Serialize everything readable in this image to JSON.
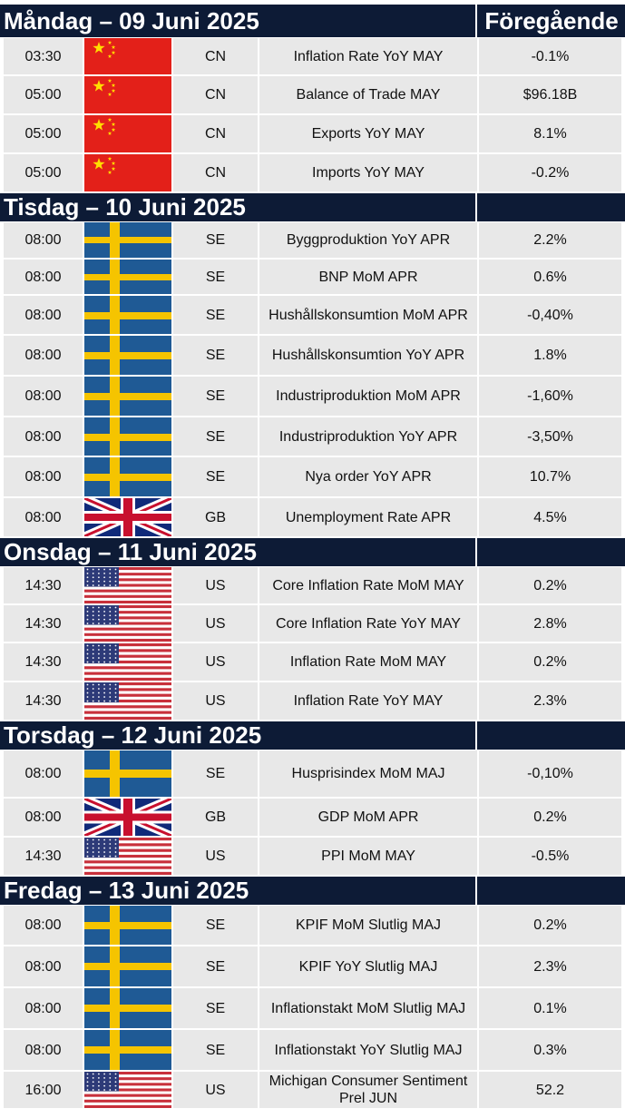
{
  "column_header_prev": "Föregående",
  "flag_colors": {
    "CN": {
      "red": "#e32019",
      "star": "#ffde00"
    },
    "SE": {
      "blue": "#1f5a95",
      "yellow": "#f5c400"
    },
    "GB": {
      "blue": "#102a7a",
      "white": "#ffffff",
      "red": "#c8102e"
    },
    "US": {
      "stripe_red": "#c8303b",
      "white": "#ffffff",
      "canton": "#2d3a78"
    }
  },
  "days": [
    {
      "title": "Måndag – 09 Juni 2025",
      "rows": [
        {
          "time": "03:30",
          "flag": "cn-flag-icon",
          "code": "CN",
          "event": "Inflation Rate YoY MAY",
          "prev": "-0.1%"
        },
        {
          "time": "05:00",
          "flag": "cn-flag-icon",
          "code": "CN",
          "event": "Balance of Trade MAY",
          "prev": "$96.18B"
        },
        {
          "time": "05:00",
          "flag": "cn-flag-icon",
          "code": "CN",
          "event": "Exports YoY MAY",
          "prev": "8.1%"
        },
        {
          "time": "05:00",
          "flag": "cn-flag-icon",
          "code": "CN",
          "event": "Imports YoY MAY",
          "prev": "-0.2%"
        }
      ]
    },
    {
      "title": "Tisdag – 10 Juni 2025",
      "rows": [
        {
          "time": "08:00",
          "flag": "se-flag-icon",
          "code": "SE",
          "event": "Byggproduktion YoY APR",
          "prev": "2.2%"
        },
        {
          "time": "08:00",
          "flag": "se-flag-icon",
          "code": "SE",
          "event": "BNP MoM APR",
          "prev": "0.6%"
        },
        {
          "time": "08:00",
          "flag": "se-flag-icon",
          "code": "SE",
          "event": "Hushållskonsumtion MoM APR",
          "prev": "-0,40%"
        },
        {
          "time": "08:00",
          "flag": "se-flag-icon",
          "code": "SE",
          "event": "Hushållskonsumtion YoY APR",
          "prev": "1.8%"
        },
        {
          "time": "08:00",
          "flag": "se-flag-icon",
          "code": "SE",
          "event": "Industriproduktion MoM APR",
          "prev": "-1,60%"
        },
        {
          "time": "08:00",
          "flag": "se-flag-icon",
          "code": "SE",
          "event": "Industriproduktion YoY APR",
          "prev": "-3,50%"
        },
        {
          "time": "08:00",
          "flag": "se-flag-icon",
          "code": "SE",
          "event": "Nya order YoY APR",
          "prev": "10.7%"
        },
        {
          "time": "08:00",
          "flag": "gb-flag-icon",
          "code": "GB",
          "event": "Unemployment Rate APR",
          "prev": "4.5%"
        }
      ]
    },
    {
      "title": "Onsdag – 11 Juni 2025",
      "rows": [
        {
          "time": "14:30",
          "flag": "us-flag-icon",
          "code": "US",
          "event": "Core Inflation Rate MoM MAY",
          "prev": "0.2%"
        },
        {
          "time": "14:30",
          "flag": "us-flag-icon",
          "code": "US",
          "event": "Core Inflation Rate YoY MAY",
          "prev": "2.8%"
        },
        {
          "time": "14:30",
          "flag": "us-flag-icon",
          "code": "US",
          "event": "Inflation Rate MoM MAY",
          "prev": "0.2%"
        },
        {
          "time": "14:30",
          "flag": "us-flag-icon",
          "code": "US",
          "event": "Inflation Rate YoY MAY",
          "prev": "2.3%"
        }
      ]
    },
    {
      "title": "Torsdag – 12 Juni 2025",
      "rows": [
        {
          "time": "08:00",
          "flag": "se-flag-icon",
          "code": "SE",
          "event": "Husprisindex MoM MAJ",
          "prev": "-0,10%"
        },
        {
          "time": "08:00",
          "flag": "gb-flag-icon",
          "code": "GB",
          "event": "GDP MoM APR",
          "prev": "0.2%"
        },
        {
          "time": "14:30",
          "flag": "us-flag-icon",
          "code": "US",
          "event": "PPI MoM MAY",
          "prev": "-0.5%"
        }
      ]
    },
    {
      "title": "Fredag – 13 Juni 2025",
      "rows": [
        {
          "time": "08:00",
          "flag": "se-flag-icon",
          "code": "SE",
          "event": "KPIF MoM Slutlig MAJ",
          "prev": "0.2%"
        },
        {
          "time": "08:00",
          "flag": "se-flag-icon",
          "code": "SE",
          "event": "KPIF YoY Slutlig MAJ",
          "prev": "2.3%"
        },
        {
          "time": "08:00",
          "flag": "se-flag-icon",
          "code": "SE",
          "event": "Inflationstakt MoM Slutlig MAJ",
          "prev": "0.1%"
        },
        {
          "time": "08:00",
          "flag": "se-flag-icon",
          "code": "SE",
          "event": "Inflationstakt YoY Slutlig MAJ",
          "prev": "0.3%"
        },
        {
          "time": "16:00",
          "flag": "us-flag-icon",
          "code": "US",
          "event": "Michigan Consumer Sentiment Prel JUN",
          "prev": "52.2"
        }
      ]
    }
  ]
}
